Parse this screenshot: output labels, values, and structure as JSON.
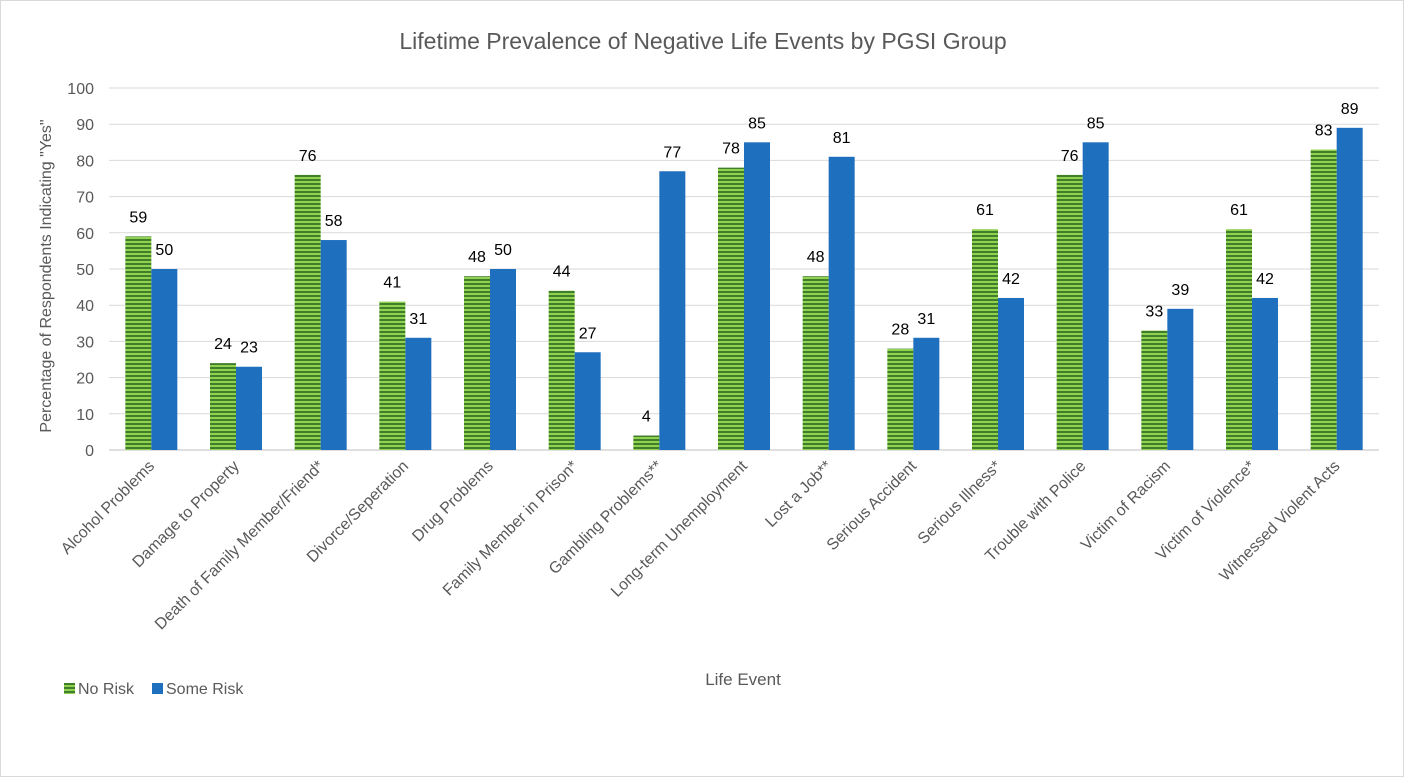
{
  "chart_data": {
    "type": "bar",
    "title": "Lifetime Prevalence of Negative Life Events by PGSI Group",
    "xlabel": "Life Event",
    "ylabel": "Percentage of Respondents Indicating \"Yes\"",
    "ylim": [
      0,
      100
    ],
    "yticks": [
      "0",
      "10",
      "20",
      "30",
      "40",
      "50",
      "60",
      "70",
      "80",
      "90",
      "100"
    ],
    "grid": true,
    "legend_position": "bottom-left",
    "categories": [
      "Alcohol Problems",
      "Damage to Property",
      "Death of Family Member/Friend*",
      "Divorce/Seperation",
      "Drug Problems",
      "Family Member in Prison*",
      "Gambling Problems**",
      "Long-term Unemployment",
      "Lost a Job**",
      "Serious Accident",
      "Serious Illness*",
      "Trouble with Police",
      "Victim of Racism",
      "Victim of Violence*",
      "Witnessed Violent Acts"
    ],
    "series": [
      {
        "name": "No Risk",
        "color": "#70ad47",
        "pattern": "horizontal-stripes",
        "values": [
          59,
          24,
          76,
          41,
          48,
          44,
          4,
          78,
          48,
          28,
          61,
          76,
          33,
          61,
          83
        ]
      },
      {
        "name": "Some Risk",
        "color": "#1f6fbf",
        "values": [
          50,
          23,
          58,
          31,
          50,
          27,
          77,
          85,
          81,
          31,
          42,
          85,
          39,
          42,
          89
        ]
      }
    ]
  }
}
